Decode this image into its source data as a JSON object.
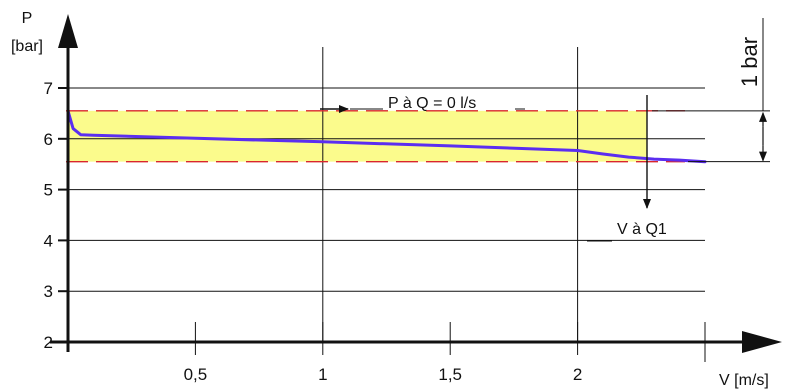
{
  "chart_data": {
    "type": "line",
    "ylabel": "P",
    "ylabel_unit": "[bar]",
    "xlabel": "V [m/s]",
    "xlim": [
      0,
      2.5
    ],
    "ylim": [
      2,
      7.6
    ],
    "x_ticks": [
      {
        "v": 0.5,
        "label": "0,5"
      },
      {
        "v": 1,
        "label": "1"
      },
      {
        "v": 1.5,
        "label": "1,5"
      },
      {
        "v": 2,
        "label": "2"
      }
    ],
    "y_ticks": [
      {
        "v": 2,
        "label": "2"
      },
      {
        "v": 3,
        "label": "3"
      },
      {
        "v": 4,
        "label": "4"
      },
      {
        "v": 5,
        "label": "5"
      },
      {
        "v": 6,
        "label": "6"
      },
      {
        "v": 7,
        "label": "7"
      }
    ],
    "gridlines_y": [
      3,
      4,
      5,
      6,
      7
    ],
    "gridlines_x": [
      1,
      2
    ],
    "series": [
      {
        "color": "#5b2ef0",
        "x": [
          0,
          0.02,
          0.05,
          0.1,
          0.5,
          1.0,
          1.5,
          2.0,
          2.1,
          2.2,
          2.3,
          2.4,
          2.5
        ],
        "y": [
          6.55,
          6.2,
          6.08,
          6.07,
          6.01,
          5.94,
          5.86,
          5.77,
          5.7,
          5.64,
          5.6,
          5.58,
          5.55
        ]
      }
    ],
    "band": {
      "ymin": 5.55,
      "ymax": 6.55,
      "x_end": 2.27,
      "color": "#fbfb8c"
    },
    "ref_lines": [
      6.55,
      5.55
    ],
    "annotations": {
      "p_at_q0": "P à Q = 0 l/s",
      "v_at_q1": "V à Q1",
      "one_bar": "1 bar"
    },
    "colors": {
      "curve": "#5b2ef0",
      "band": "#fbfb8c",
      "ref_line": "#d9262c",
      "axis": "#111111"
    }
  }
}
